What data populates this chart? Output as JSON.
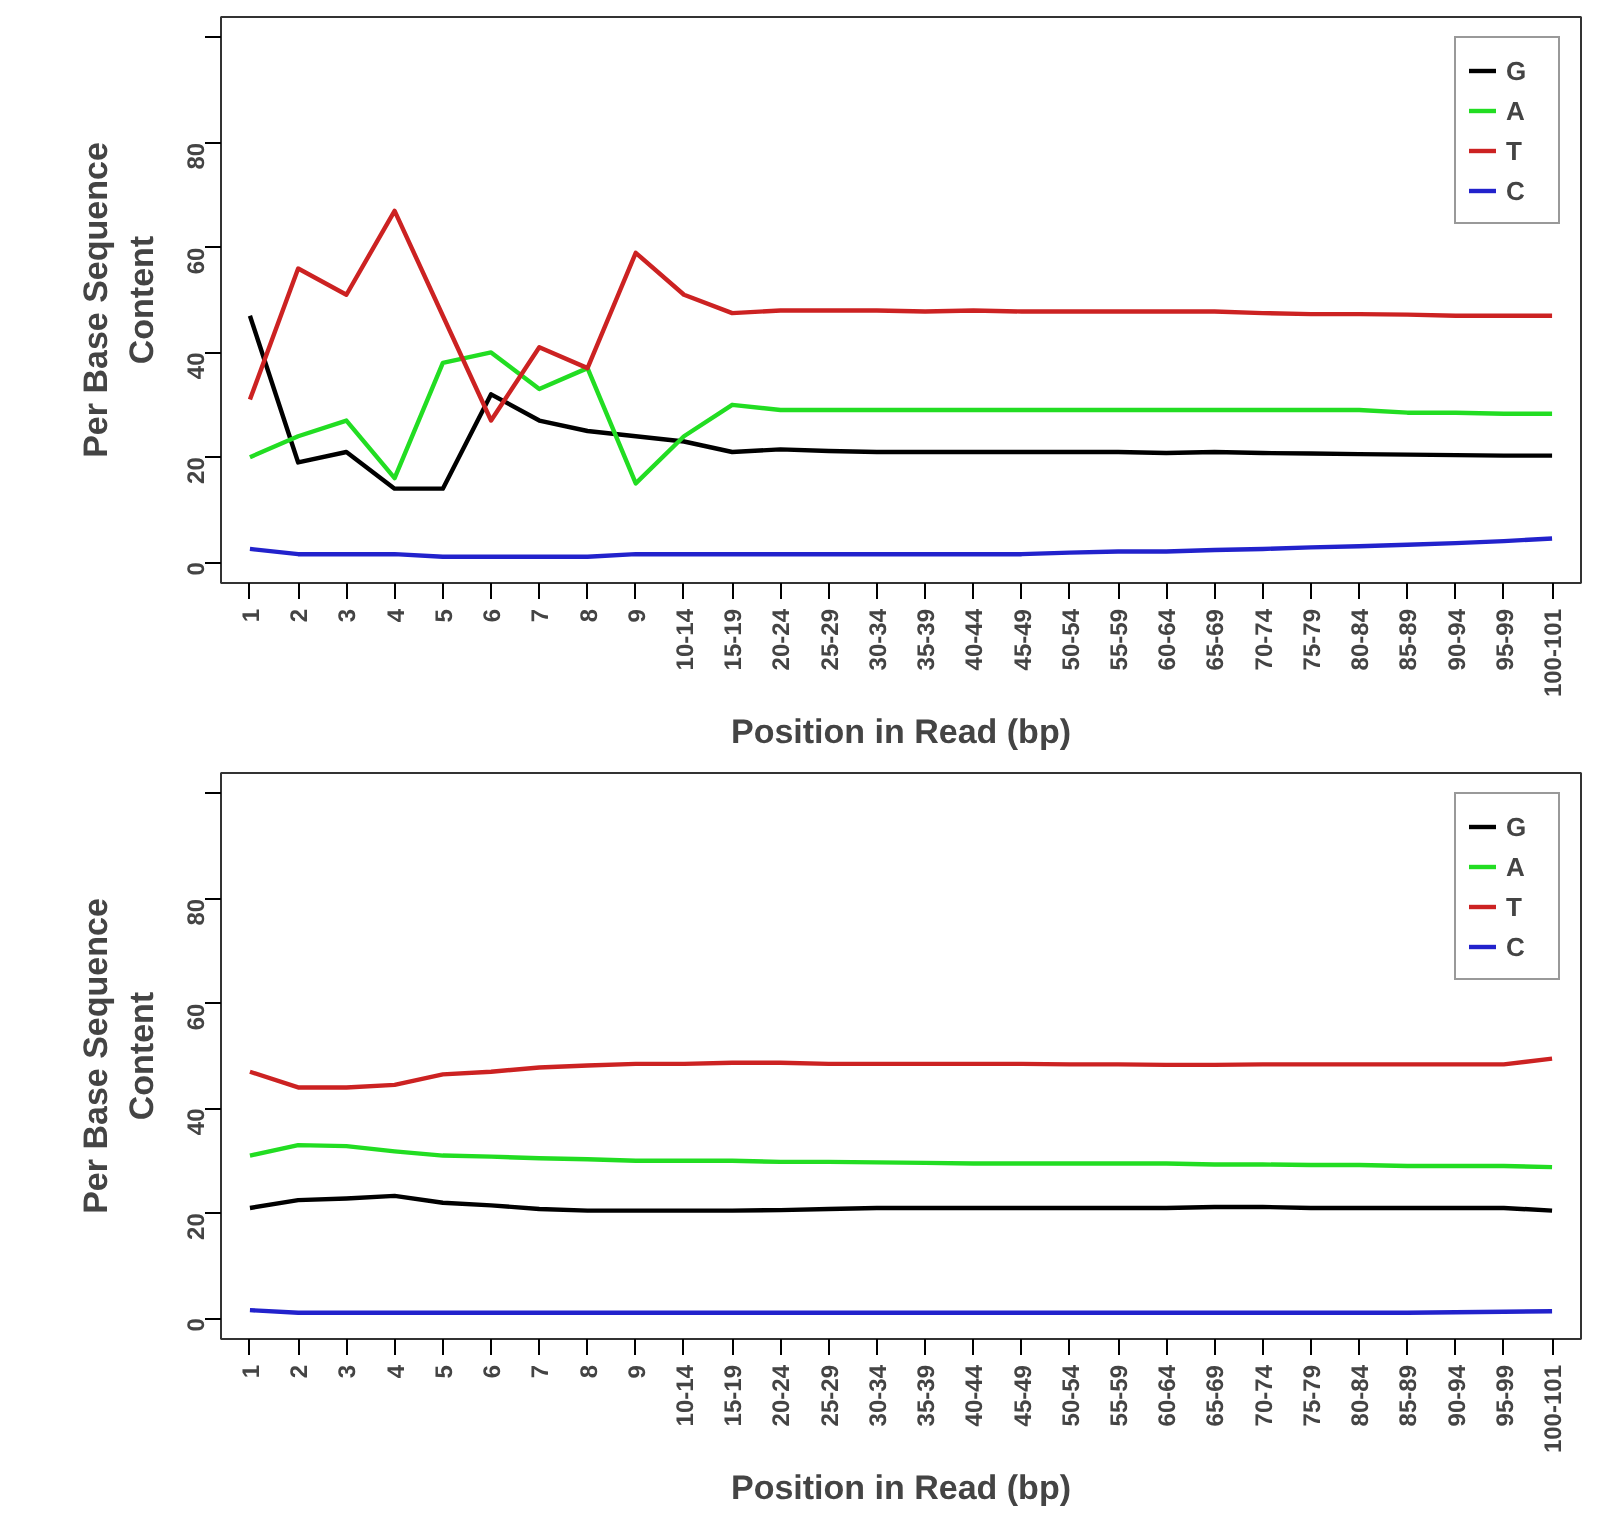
{
  "chart_data": [
    {
      "type": "line",
      "xlabel": "Position in Read (bp)",
      "ylabel": "Per Base Sequence\nContent",
      "categories": [
        "1",
        "2",
        "3",
        "4",
        "5",
        "6",
        "7",
        "8",
        "9",
        "10-14",
        "15-19",
        "20-24",
        "25-29",
        "30-34",
        "35-39",
        "40-44",
        "45-49",
        "50-54",
        "55-59",
        "60-64",
        "65-69",
        "70-74",
        "75-79",
        "80-84",
        "85-89",
        "90-94",
        "95-99",
        "100-101"
      ],
      "ylim": [
        -4,
        104
      ],
      "yticks": [
        0,
        20,
        40,
        60,
        80,
        {
          "value": 100,
          "label": null
        }
      ],
      "grid": false,
      "legend": "top right",
      "marker": "none",
      "line_style": "solid",
      "series": [
        {
          "name": "G",
          "color": "#000000",
          "values": [
            47,
            19,
            21,
            14,
            14,
            32,
            27,
            25,
            24,
            23,
            21,
            21.5,
            21.2,
            21,
            21,
            21,
            21,
            21,
            21,
            20.8,
            21,
            20.8,
            20.7,
            20.6,
            20.5,
            20.4,
            20.3,
            20.3
          ]
        },
        {
          "name": "A",
          "color": "#22dd22",
          "values": [
            20,
            24,
            27,
            16,
            38,
            40,
            33,
            37,
            15,
            24,
            30,
            29,
            29,
            29,
            29,
            29,
            29,
            29,
            29,
            29,
            29,
            29,
            29,
            29,
            28.5,
            28.5,
            28.3,
            28.3
          ]
        },
        {
          "name": "T",
          "color": "#cc2222",
          "values": [
            31,
            56,
            51,
            67,
            47,
            27,
            41,
            37,
            59,
            51,
            47.5,
            48,
            48,
            48,
            47.8,
            48,
            47.8,
            47.8,
            47.8,
            47.8,
            47.8,
            47.5,
            47.3,
            47.3,
            47.2,
            47,
            47,
            47
          ]
        },
        {
          "name": "C",
          "color": "#2222cc",
          "values": [
            2.5,
            1.5,
            1.5,
            1.5,
            1,
            1,
            1,
            1,
            1.5,
            1.5,
            1.5,
            1.5,
            1.5,
            1.5,
            1.5,
            1.5,
            1.5,
            1.8,
            2,
            2,
            2.3,
            2.5,
            2.8,
            3,
            3.3,
            3.6,
            4,
            4.5
          ]
        }
      ]
    },
    {
      "type": "line",
      "xlabel": "Position in Read (bp)",
      "ylabel": "Per Base Sequence\nContent",
      "categories": [
        "1",
        "2",
        "3",
        "4",
        "5",
        "6",
        "7",
        "8",
        "9",
        "10-14",
        "15-19",
        "20-24",
        "25-29",
        "30-34",
        "35-39",
        "40-44",
        "45-49",
        "50-54",
        "55-59",
        "60-64",
        "65-69",
        "70-74",
        "75-79",
        "80-84",
        "85-89",
        "90-94",
        "95-99",
        "100-101"
      ],
      "ylim": [
        -4,
        104
      ],
      "yticks": [
        0,
        20,
        40,
        60,
        80,
        {
          "value": 100,
          "label": null
        }
      ],
      "grid": false,
      "legend": "top right",
      "marker": "none",
      "line_style": "solid",
      "series": [
        {
          "name": "G",
          "color": "#000000",
          "values": [
            21,
            22.5,
            22.8,
            23.3,
            22,
            21.5,
            20.8,
            20.5,
            20.5,
            20.5,
            20.5,
            20.6,
            20.8,
            21,
            21,
            21,
            21,
            21,
            21,
            21,
            21.2,
            21.2,
            21,
            21,
            21,
            21,
            21,
            20.5
          ]
        },
        {
          "name": "A",
          "color": "#22dd22",
          "values": [
            31,
            33,
            32.8,
            31.8,
            31,
            30.8,
            30.5,
            30.3,
            30,
            30,
            30,
            29.8,
            29.8,
            29.7,
            29.6,
            29.5,
            29.5,
            29.5,
            29.5,
            29.5,
            29.3,
            29.3,
            29.2,
            29.2,
            29,
            29,
            29,
            28.8
          ]
        },
        {
          "name": "T",
          "color": "#cc2222",
          "values": [
            47,
            44,
            44,
            44.5,
            46.5,
            47,
            47.8,
            48.2,
            48.5,
            48.5,
            48.7,
            48.7,
            48.5,
            48.5,
            48.5,
            48.5,
            48.5,
            48.4,
            48.4,
            48.3,
            48.3,
            48.4,
            48.4,
            48.4,
            48.4,
            48.4,
            48.4,
            49.5
          ]
        },
        {
          "name": "C",
          "color": "#2222cc",
          "values": [
            1.5,
            1,
            1,
            1,
            1,
            1,
            1,
            1,
            1,
            1,
            1,
            1,
            1,
            1,
            1,
            1,
            1,
            1,
            1,
            1,
            1,
            1,
            1,
            1,
            1,
            1.1,
            1.2,
            1.3
          ]
        }
      ]
    }
  ]
}
